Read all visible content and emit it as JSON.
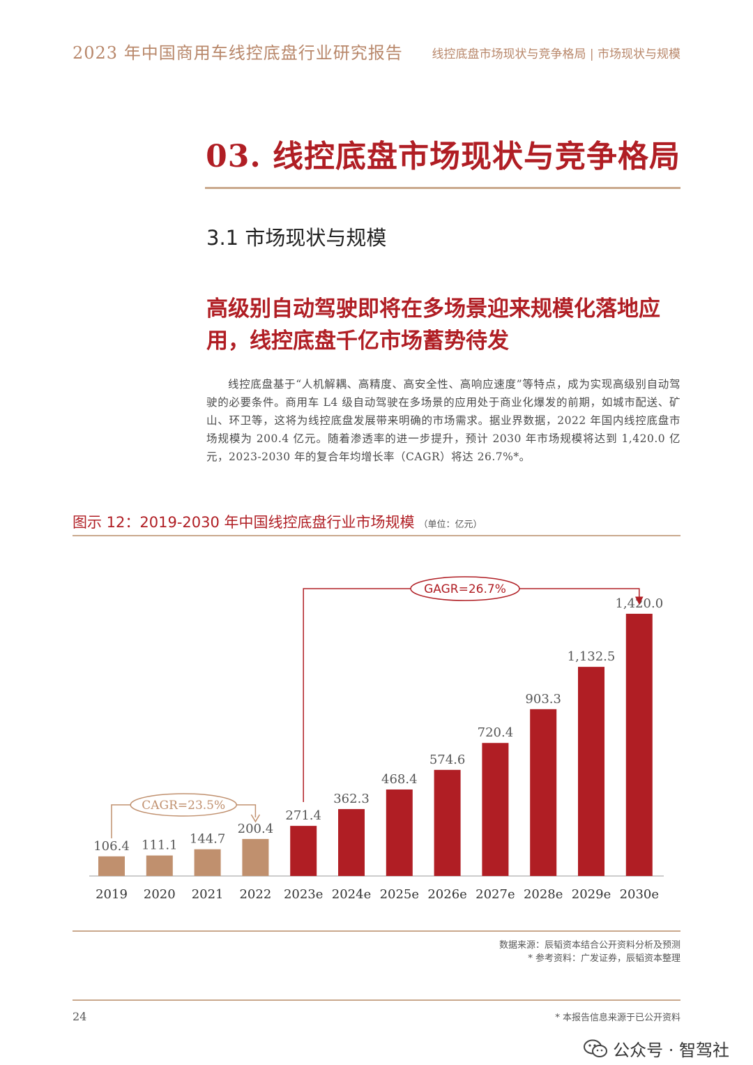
{
  "header": {
    "report_title": "2023 年中国商用车线控底盘行业研究报告",
    "breadcrumb": "线控底盘市场现状与竞争格局 | 市场现状与规模"
  },
  "section": {
    "title": "03. 线控底盘市场现状与竞争格局",
    "subsection": "3.1 市场现状与规模",
    "headline": "高级别自动驾驶即将在多场景迎来规模化落地应用，线控底盘千亿市场蓄势待发",
    "body": "线控底盘基于“人机解耦、高精度、高安全性、高响应速度”等特点，成为实现高级别自动驾驶的必要条件。商用车 L4 级自动驾驶在多场景的应用处于商业化爆发的前期，如城市配送、矿山、环卫等，这将为线控底盘发展带来明确的市场需求。据业界数据，2022 年国内线控底盘市场规模为 200.4 亿元。随着渗透率的进一步提升，预计 2030 年市场规模将达到 1,420.0 亿元，2023-2030 年的复合年均增长率（CAGR）将达 26.7%*。"
  },
  "figure": {
    "caption": "图示 12：2019-2030 年中国线控底盘行业市场规模",
    "unit": "（单位：亿元）",
    "source_line1": "数据来源：辰韬资本结合公开资料分析及预测",
    "source_line2": "* 参考资料：广发证券，辰韬资本整理"
  },
  "chart_data": {
    "type": "bar",
    "categories": [
      "2019",
      "2020",
      "2021",
      "2022",
      "2023e",
      "2024e",
      "2025e",
      "2026e",
      "2027e",
      "2028e",
      "2029e",
      "2030e"
    ],
    "values": [
      106.4,
      111.1,
      144.7,
      200.4,
      271.4,
      362.3,
      468.4,
      574.6,
      720.4,
      903.3,
      1132.5,
      1420.0
    ],
    "value_labels": [
      "106.4",
      "111.1",
      "144.7",
      "200.4",
      "271.4",
      "362.3",
      "468.4",
      "574.6",
      "720.4",
      "903.3",
      "1,132.5",
      "1,420.0"
    ],
    "ylim": [
      0,
      1500
    ],
    "colors": {
      "historical": "#c0906e",
      "forecast": "#b01e24"
    },
    "annotations": [
      {
        "text": "CAGR=23.5%",
        "from": "2019",
        "to": "2022"
      },
      {
        "text": "GAGR=26.7%",
        "from": "2023e",
        "to": "2030e"
      }
    ]
  },
  "footer": {
    "page_number": "24",
    "note": "* 本报告信息来源于已公开资料",
    "wechat_label": "公众号 · 智驾社",
    "wechat_icon": "wechat-icon"
  }
}
